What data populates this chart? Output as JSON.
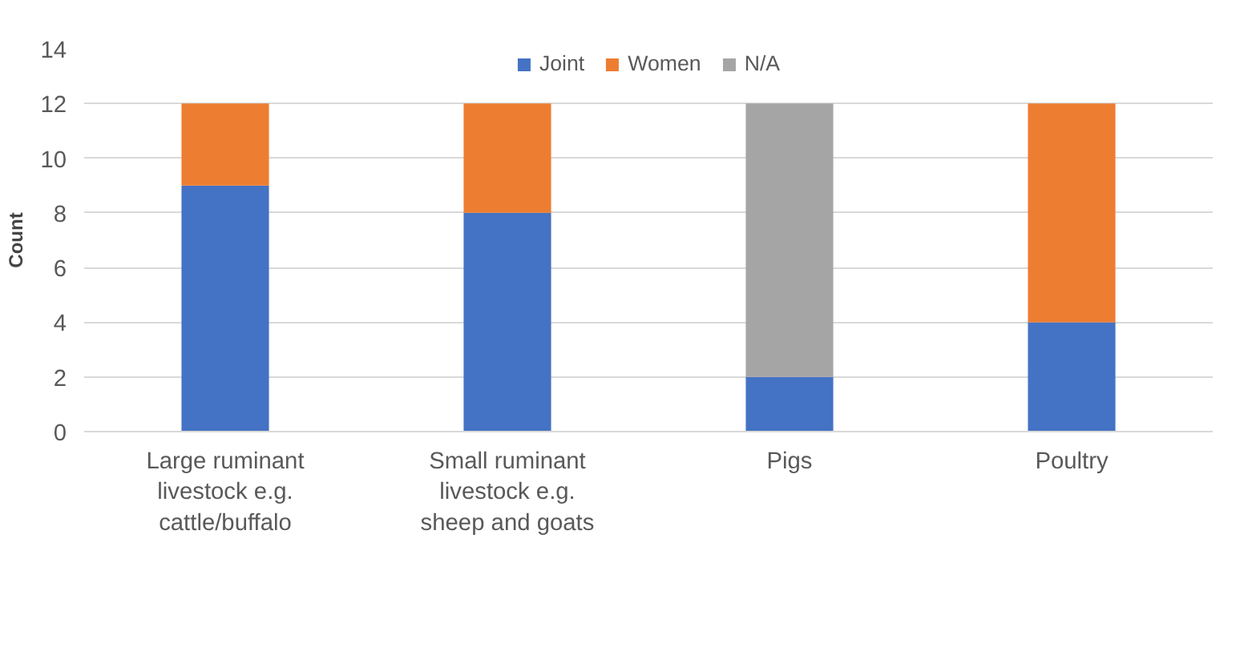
{
  "chart_data": {
    "type": "bar",
    "stacked": true,
    "ylabel": "Count",
    "categories": [
      "Large ruminant livestock e.g. cattle/buffalo",
      "Small ruminant livestock e.g. sheep and goats",
      "Pigs",
      "Poultry"
    ],
    "series": [
      {
        "name": "Joint",
        "color": "#4472c4",
        "values": [
          9,
          8,
          2,
          4
        ]
      },
      {
        "name": "Women",
        "color": "#ed7d31",
        "values": [
          3,
          4,
          0,
          8
        ]
      },
      {
        "name": "N/A",
        "color": "#a5a5a5",
        "values": [
          0,
          0,
          10,
          0
        ]
      }
    ],
    "ylim": [
      0,
      14
    ],
    "yticks": [
      0,
      2,
      4,
      6,
      8,
      10,
      12,
      14
    ],
    "grid": "y",
    "legend": "top"
  }
}
